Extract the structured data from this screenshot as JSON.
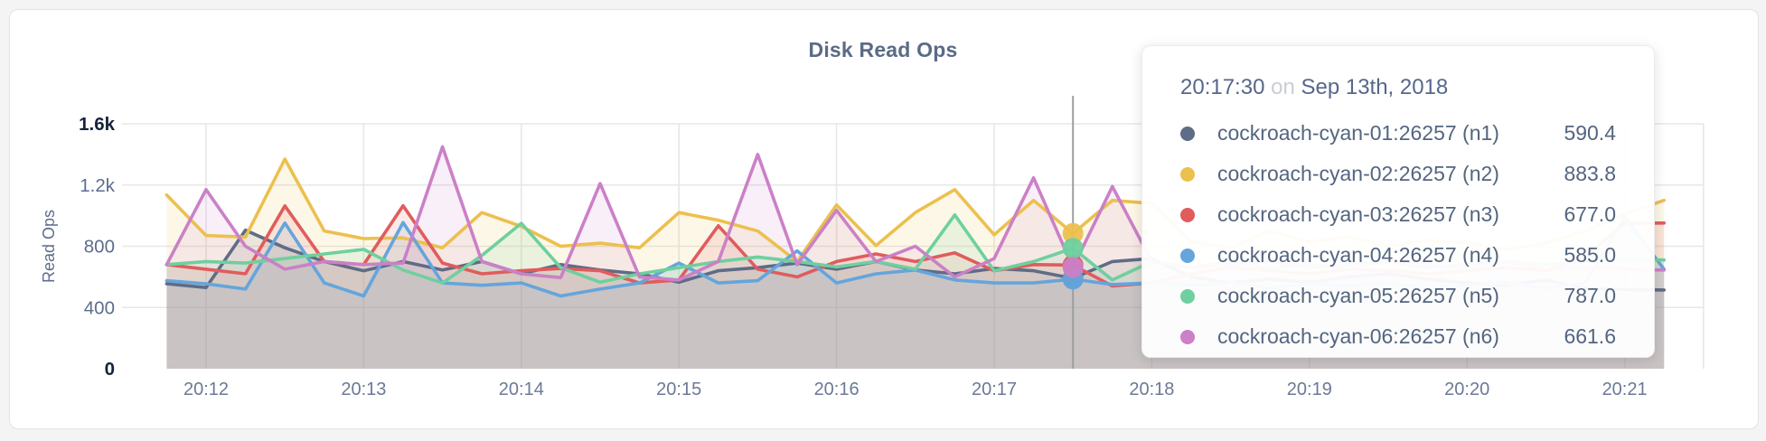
{
  "panel": {
    "title": "Disk Read Ops"
  },
  "tooltip": {
    "time": "20:17:30",
    "on_word": "on",
    "date": "Sep 13th, 2018"
  },
  "chart_data": {
    "type": "line",
    "title": "Disk Read Ops",
    "xlabel": "",
    "ylabel": "Read Ops",
    "ylim": [
      0,
      1600
    ],
    "grid": true,
    "legend_position": "tooltip",
    "highlight_time": "20:17:30",
    "yticks": [
      {
        "label": "0",
        "value": 0,
        "emphasis": true
      },
      {
        "label": "400",
        "value": 400,
        "emphasis": false
      },
      {
        "label": "800",
        "value": 800,
        "emphasis": false
      },
      {
        "label": "1.2k",
        "value": 1200,
        "emphasis": false
      },
      {
        "label": "1.6k",
        "value": 1600,
        "emphasis": true
      }
    ],
    "xticks": [
      "20:12",
      "20:13",
      "20:14",
      "20:15",
      "20:16",
      "20:17",
      "20:18",
      "20:19",
      "20:20",
      "20:21"
    ],
    "x_times": [
      "20:11:45",
      "20:12:00",
      "20:12:15",
      "20:12:30",
      "20:12:45",
      "20:13:00",
      "20:13:15",
      "20:13:30",
      "20:13:45",
      "20:14:00",
      "20:14:15",
      "20:14:30",
      "20:14:45",
      "20:15:00",
      "20:15:15",
      "20:15:30",
      "20:15:45",
      "20:16:00",
      "20:16:15",
      "20:16:30",
      "20:16:45",
      "20:17:00",
      "20:17:15",
      "20:17:30",
      "20:17:45",
      "20:18:00",
      "20:18:15",
      "20:18:30",
      "20:18:45",
      "20:19:00",
      "20:19:15",
      "20:19:30",
      "20:19:45",
      "20:20:00",
      "20:20:15",
      "20:20:30",
      "20:20:45",
      "20:21:00",
      "20:21:15"
    ],
    "series": [
      {
        "id": "n1",
        "name": "cockroach-cyan-01:26257 (n1)",
        "color": "#5f6c87",
        "highlight_value": 590.4,
        "highlight_display": "590.4",
        "values": [
          555,
          530,
          905,
          790,
          700,
          640,
          700,
          645,
          700,
          620,
          680,
          645,
          620,
          565,
          640,
          660,
          690,
          650,
          700,
          645,
          620,
          655,
          640,
          590.4,
          700,
          720,
          600,
          560,
          585,
          565,
          600,
          620,
          585,
          560,
          545,
          580,
          525,
          518,
          514
        ]
      },
      {
        "id": "n2",
        "name": "cockroach-cyan-02:26257 (n2)",
        "color": "#ecc04f",
        "highlight_value": 883.8,
        "highlight_display": "883.8",
        "values": [
          1135,
          870,
          860,
          1370,
          900,
          850,
          855,
          790,
          1020,
          930,
          800,
          820,
          790,
          1020,
          970,
          900,
          700,
          1070,
          805,
          1020,
          1170,
          875,
          1100,
          883.8,
          1100,
          1080,
          830,
          790,
          900,
          830,
          860,
          800,
          840,
          820,
          780,
          820,
          900,
          1010,
          1100
        ]
      },
      {
        "id": "n3",
        "name": "cockroach-cyan-03:26257 (n3)",
        "color": "#e05c5d",
        "highlight_value": 677.0,
        "highlight_display": "677.0",
        "values": [
          680,
          650,
          620,
          1064,
          700,
          680,
          1065,
          690,
          620,
          640,
          655,
          640,
          560,
          580,
          934,
          650,
          600,
          700,
          750,
          700,
          757,
          640,
          680,
          677,
          540,
          560,
          620,
          660,
          640,
          620,
          650,
          640,
          620,
          640,
          660,
          640,
          730,
          950,
          952
        ]
      },
      {
        "id": "n4",
        "name": "cockroach-cyan-04:26257 (n4)",
        "color": "#64a5dc",
        "highlight_value": 585.0,
        "highlight_display": "585.0",
        "values": [
          575,
          555,
          520,
          952,
          560,
          475,
          955,
          560,
          545,
          560,
          475,
          520,
          560,
          690,
          560,
          575,
          770,
          560,
          620,
          645,
          580,
          560,
          560,
          585,
          550,
          560,
          545,
          560,
          525,
          555,
          540,
          560,
          525,
          545,
          560,
          525,
          560,
          990,
          650
        ]
      },
      {
        "id": "n5",
        "name": "cockroach-cyan-05:26257 (n5)",
        "color": "#6ed09e",
        "highlight_value": 787.0,
        "highlight_display": "787.0",
        "values": [
          680,
          700,
          690,
          720,
          750,
          780,
          645,
          560,
          740,
          950,
          660,
          565,
          620,
          660,
          700,
          730,
          700,
          665,
          700,
          650,
          1005,
          640,
          700,
          787,
          580,
          700,
          660,
          700,
          655,
          680,
          660,
          700,
          680,
          655,
          700,
          680,
          700,
          715,
          710
        ]
      },
      {
        "id": "n6",
        "name": "cockroach-cyan-06:26257 (n6)",
        "color": "#cb80c7",
        "highlight_value": 661.6,
        "highlight_display": "661.6",
        "values": [
          680,
          1170,
          800,
          650,
          700,
          680,
          690,
          1450,
          700,
          620,
          595,
          1210,
          600,
          580,
          700,
          1400,
          680,
          1035,
          700,
          800,
          600,
          720,
          1247,
          661.6,
          1190,
          700,
          665,
          680,
          700,
          660,
          680,
          700,
          660,
          680,
          700,
          650,
          660,
          650,
          645
        ]
      }
    ]
  }
}
